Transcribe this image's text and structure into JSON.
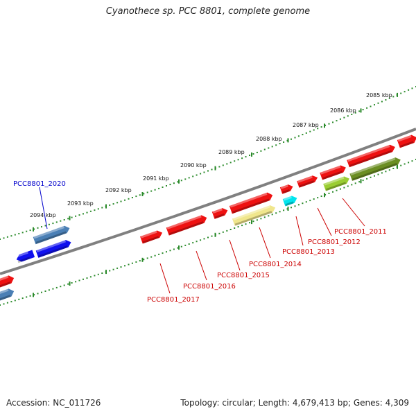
{
  "title": "Cyanothece sp. PCC 8801, complete genome",
  "footer": {
    "accession": "Accession: NC_011726",
    "topology": "Topology: circular; Length: 4,679,413 bp; Genes: 4,309"
  },
  "colors": {
    "backbone": "#808080",
    "ruler": "#2a8a2a",
    "red_gene": "#ee1111",
    "blue_gene": "#1010ee",
    "steel_gene": "#4a7fb5",
    "khaki_gene": "#f0e68c",
    "cyan_gene": "#00e5ee",
    "olive_gene": "#6b8e23",
    "lime_gene": "#9acd32",
    "red_label": "#cc0000",
    "blue_label": "#0000cc"
  },
  "ruler": {
    "ticks": [
      "2085 kbp",
      "2086 kbp",
      "2087 kbp",
      "2088 kbp",
      "2089 kbp",
      "2090 kbp",
      "2091 kbp",
      "2092 kbp",
      "2093 kbp",
      "2094 kbp"
    ]
  },
  "gene_labels": [
    "PCC8801_2011",
    "PCC8801_2012",
    "PCC8801_2013",
    "PCC8801_2014",
    "PCC8801_2015",
    "PCC8801_2016",
    "PCC8801_2017",
    "PCC8801_2020"
  ]
}
